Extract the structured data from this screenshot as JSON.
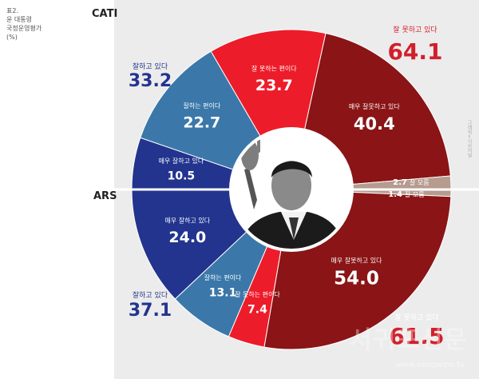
{
  "caption": {
    "line1": "표2.",
    "line2": "윤 대통령",
    "line3": "국정운영평가",
    "line4": "(%)"
  },
  "colors": {
    "very_good": "#23348f",
    "somewhat_good": "#3b78a9",
    "somewhat_bad": "#ed1c2a",
    "very_bad": "#8a1416",
    "unknown": "#b69b8f",
    "divider": "#ffffff",
    "total_good_text": "#23348f",
    "total_bad_text": "#d21f2c"
  },
  "watermark": {
    "text": "서귀포신문",
    "url": "www.seogwipo.tv",
    "credit": "그래픽=시사저널"
  },
  "chart_data": [
    {
      "type": "pie",
      "title": "CATI",
      "slices": [
        {
          "label": "매우 잘못하고 있다",
          "value": 40.4
        },
        {
          "label": "잘 모름",
          "value": 2.7
        },
        {
          "label": "매우 잘하고 있다",
          "value": 10.5
        },
        {
          "label": "잘하는 편이다",
          "value": 22.7
        },
        {
          "label": "잘 못하는 편이다",
          "value": 23.7
        }
      ],
      "totals": [
        {
          "label": "잘하고 있다",
          "value": 33.2
        },
        {
          "label": "잘 못하고 있다",
          "value": 64.1
        }
      ]
    },
    {
      "type": "pie",
      "title": "ARS",
      "slices": [
        {
          "label": "잘 모름",
          "value": 1.4
        },
        {
          "label": "매우 잘못하고 있다",
          "value": 54.0
        },
        {
          "label": "잘 못하는 편이다",
          "value": 7.4
        },
        {
          "label": "잘하는 편이다",
          "value": 13.1
        },
        {
          "label": "매우 잘하고 있다",
          "value": 24.0
        }
      ],
      "totals": [
        {
          "label": "잘하고 있다",
          "value": 37.1
        },
        {
          "label": "잘 못하고 있다",
          "value": 61.5
        }
      ]
    }
  ]
}
